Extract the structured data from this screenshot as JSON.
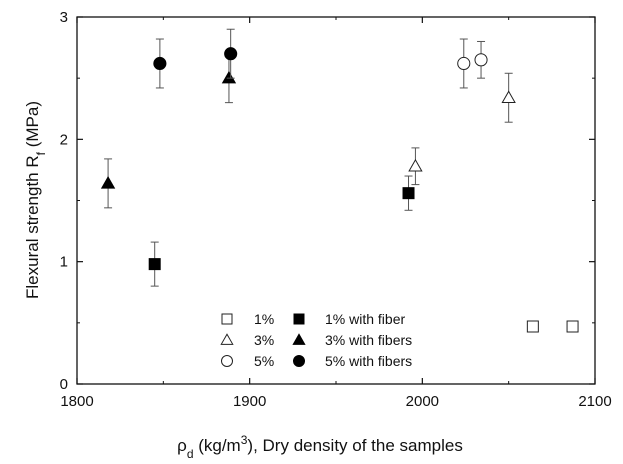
{
  "chart_data": {
    "type": "scatter",
    "title": "",
    "xlabel": {
      "symbol": "ρ",
      "subscript": "d",
      "text_before_sup": " (kg/m",
      "superscript": "3",
      "text_after_sup": "), Dry density of the samples"
    },
    "ylabel": {
      "text": "Flexural strength R",
      "subscript": "f",
      "suffix": " (MPa)"
    },
    "xlim": [
      1800,
      2100
    ],
    "ylim": [
      0,
      3
    ],
    "xticks": [
      "1800",
      "1900",
      "2000",
      "2100"
    ],
    "yticks": [
      "0",
      "1",
      "2",
      "3"
    ],
    "grid": false,
    "legend_position": "bottom-right",
    "series": [
      {
        "name": "1%",
        "marker": "square",
        "filled": false,
        "color": "#222222",
        "points": [
          {
            "x": 2064,
            "y": 0.47,
            "err": 0.0
          },
          {
            "x": 2087,
            "y": 0.47,
            "err": 0.0
          }
        ]
      },
      {
        "name": "3%",
        "marker": "triangle",
        "filled": false,
        "color": "#222222",
        "points": [
          {
            "x": 1996,
            "y": 1.78,
            "err": 0.15
          },
          {
            "x": 2050,
            "y": 2.34,
            "err": 0.2
          }
        ]
      },
      {
        "name": "5%",
        "marker": "circle",
        "filled": false,
        "color": "#222222",
        "points": [
          {
            "x": 2024,
            "y": 2.62,
            "err": 0.2
          },
          {
            "x": 2034,
            "y": 2.65,
            "err": 0.15
          }
        ]
      },
      {
        "name": "1% with fiber",
        "marker": "square",
        "filled": true,
        "color": "#000000",
        "points": [
          {
            "x": 1845,
            "y": 0.98,
            "err": 0.18
          },
          {
            "x": 1992,
            "y": 1.56,
            "err": 0.14
          }
        ]
      },
      {
        "name": "3% with fibers",
        "marker": "triangle",
        "filled": true,
        "color": "#000000",
        "points": [
          {
            "x": 1818,
            "y": 1.64,
            "err": 0.2
          },
          {
            "x": 1888,
            "y": 2.5,
            "err": 0.2
          }
        ]
      },
      {
        "name": "5% with fibers",
        "marker": "circle",
        "filled": true,
        "color": "#000000",
        "points": [
          {
            "x": 1848,
            "y": 2.62,
            "err": 0.2
          },
          {
            "x": 1889,
            "y": 2.7,
            "err": 0.2
          }
        ]
      }
    ]
  }
}
